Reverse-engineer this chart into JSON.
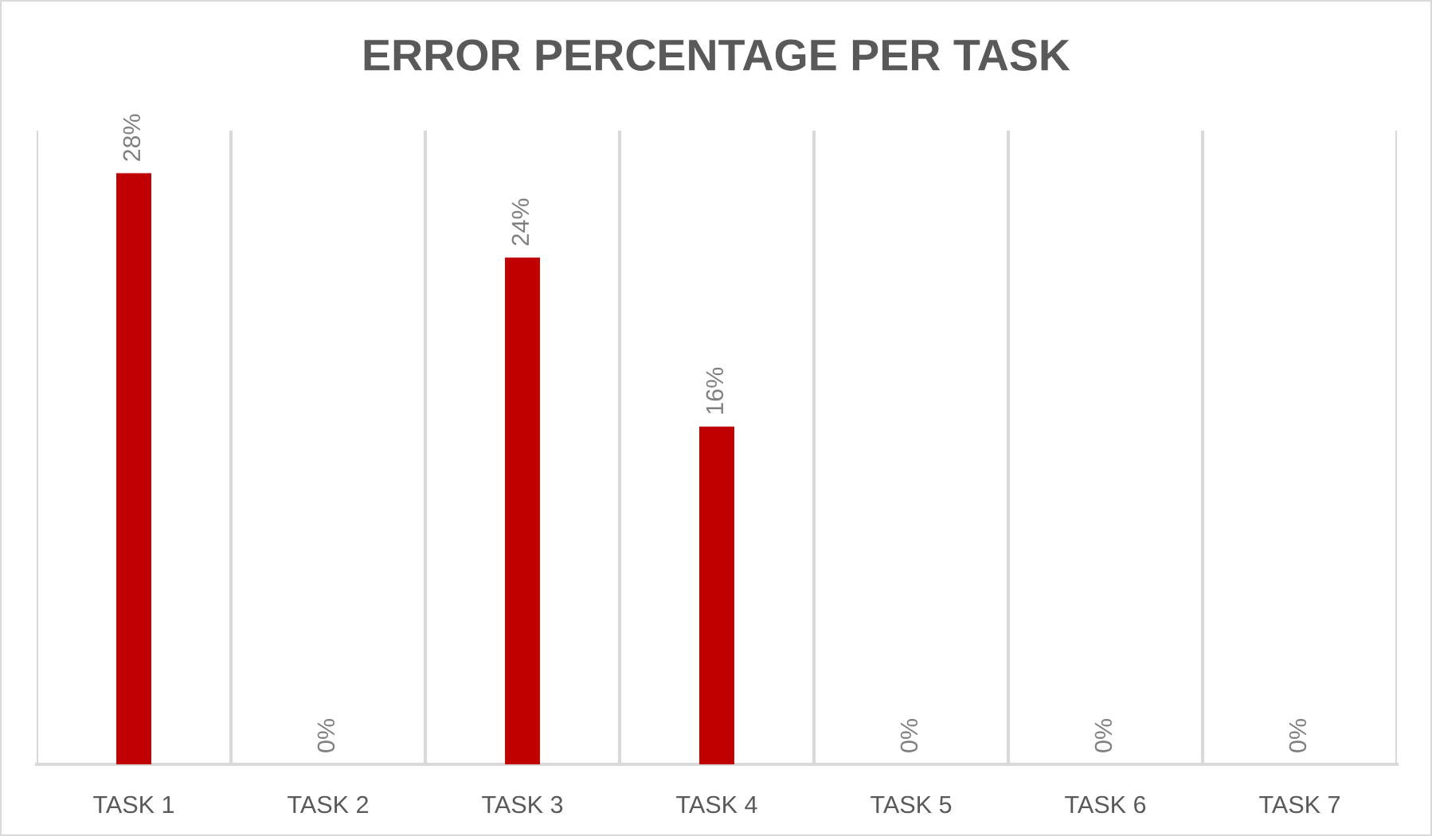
{
  "chart_data": {
    "type": "bar",
    "title": "ERROR PERCENTAGE PER TASK",
    "categories": [
      "TASK 1",
      "TASK 2",
      "TASK 3",
      "TASK 4",
      "TASK 5",
      "TASK 6",
      "TASK 7"
    ],
    "values": [
      28,
      0,
      24,
      16,
      0,
      0,
      0
    ],
    "color": "#c00000",
    "value_labels": [
      "28%",
      "0%",
      "24%",
      "16%",
      "0%",
      "0%",
      "0%"
    ],
    "grid": "x"
  }
}
